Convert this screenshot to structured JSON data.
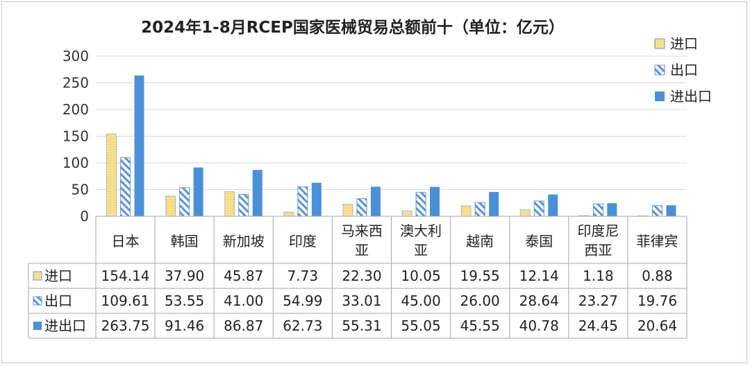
{
  "chart_data": {
    "type": "bar",
    "title": "2024年1-8月RCEP国家医械贸易总额前十（单位：亿元）",
    "categories": [
      "日本",
      "韩国",
      "新加坡",
      "印度",
      "马来西亚",
      "澳大利亚",
      "越南",
      "泰国",
      "印度尼西亚",
      "菲律宾"
    ],
    "category_lines": [
      [
        "日本"
      ],
      [
        "韩国"
      ],
      [
        "新加坡"
      ],
      [
        "印度"
      ],
      [
        "马来西",
        "亚"
      ],
      [
        "澳大利",
        "亚"
      ],
      [
        "越南"
      ],
      [
        "泰国"
      ],
      [
        "印度尼",
        "西亚"
      ],
      [
        "菲律宾"
      ]
    ],
    "series": [
      {
        "name": "进口",
        "pattern": "dotted",
        "color": "#fbe08e",
        "border": "#5b9bd5",
        "values": [
          154.14,
          37.9,
          45.87,
          7.73,
          22.3,
          10.05,
          19.55,
          12.14,
          1.18,
          0.88
        ],
        "labels": [
          "154.14",
          "37.90",
          "45.87",
          "7.73",
          "22.30",
          "10.05",
          "19.55",
          "12.14",
          "1.18",
          "0.88"
        ]
      },
      {
        "name": "出口",
        "pattern": "hatched",
        "color": "#5b8fd8",
        "border": "#5b9bd5",
        "values": [
          109.61,
          53.55,
          41.0,
          54.99,
          33.01,
          45.0,
          26.0,
          28.64,
          23.27,
          19.76
        ],
        "labels": [
          "109.61",
          "53.55",
          "41.00",
          "54.99",
          "33.01",
          "45.00",
          "26.00",
          "28.64",
          "23.27",
          "19.76"
        ]
      },
      {
        "name": "进出口",
        "pattern": "solid",
        "color": "#4a90d9",
        "border": "#4a90d9",
        "values": [
          263.75,
          91.46,
          86.87,
          62.73,
          55.31,
          55.05,
          45.55,
          40.78,
          24.45,
          20.64
        ],
        "labels": [
          "263.75",
          "91.46",
          "86.87",
          "62.73",
          "55.31",
          "55.05",
          "45.55",
          "40.78",
          "24.45",
          "20.64"
        ]
      }
    ],
    "yticks": [
      "0",
      "50",
      "100",
      "150",
      "200",
      "250",
      "300"
    ],
    "ylim": [
      0,
      300
    ],
    "grid": true,
    "legend": "top-right",
    "data_table": true
  }
}
